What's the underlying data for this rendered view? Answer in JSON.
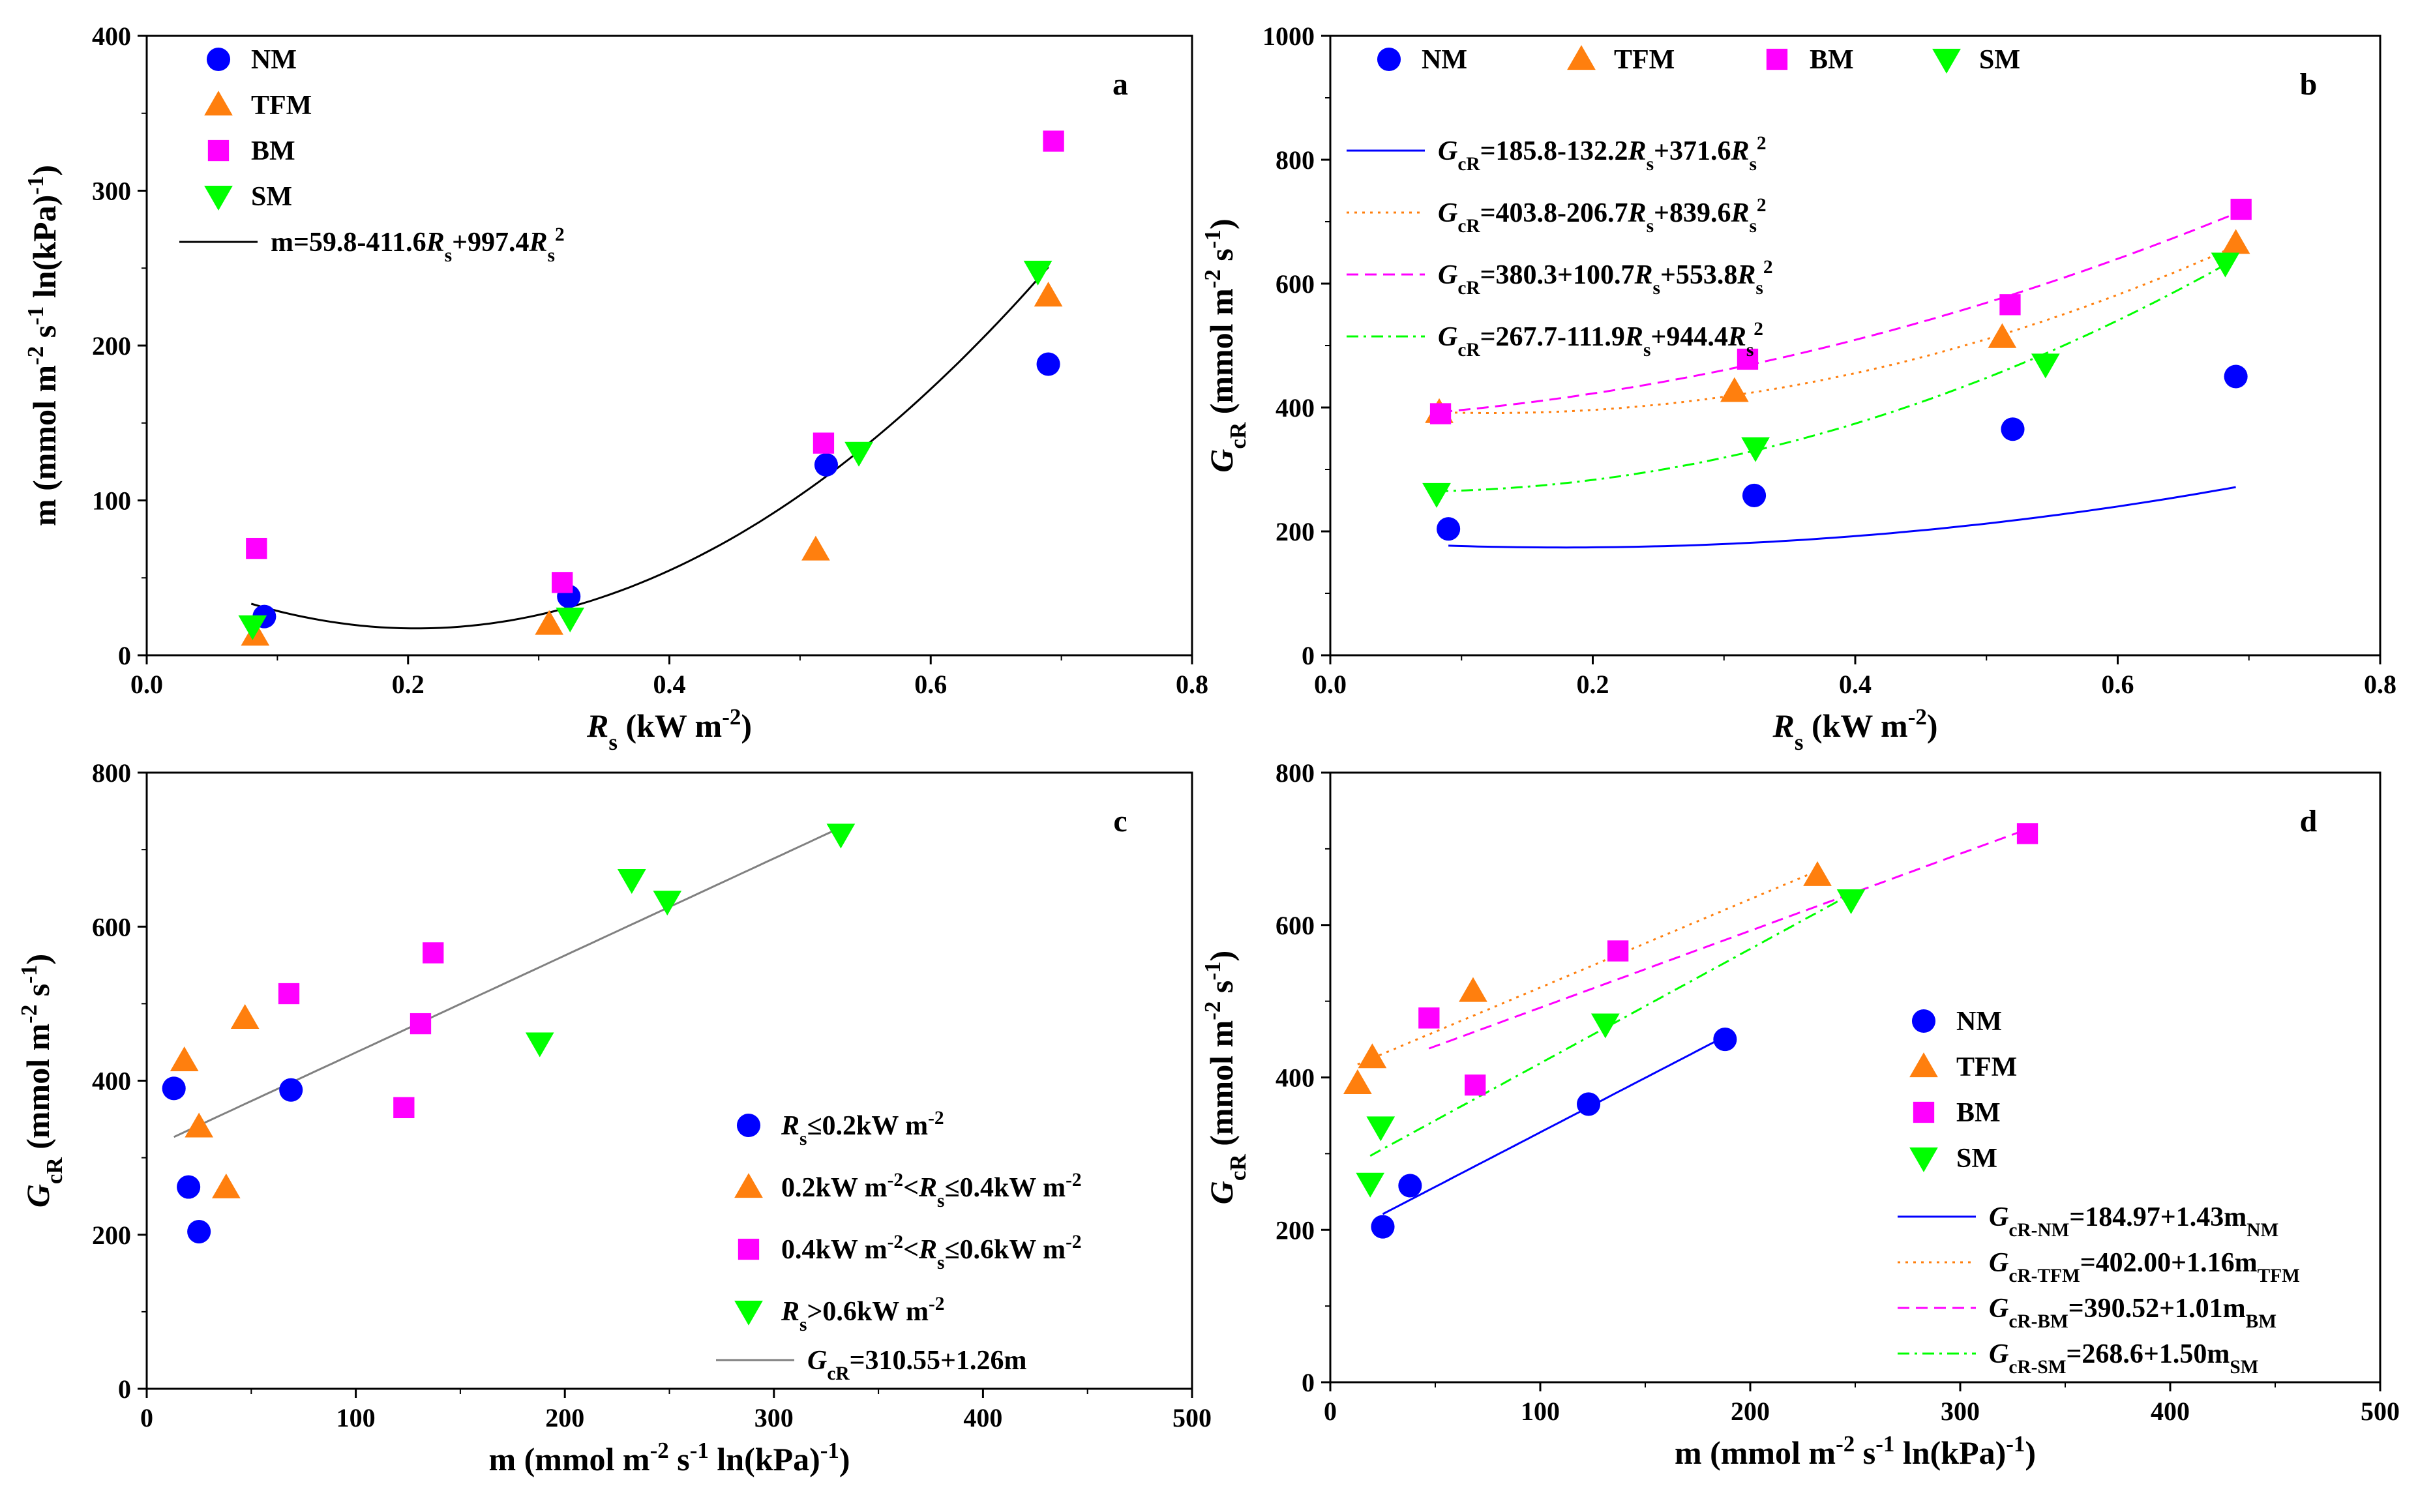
{
  "colors": {
    "NM": "#0000ff",
    "TFM": "#ff7f0e",
    "BM": "#ff00ff",
    "SM": "#00ff00",
    "fit_a": "#000000",
    "fit_c": "#808080"
  },
  "chart_data": [
    {
      "panel": "a",
      "type": "scatter",
      "label": "a",
      "xlabel": "R_s (kW m^-2)",
      "ylabel": "m (mmol m^-2 s^-1 ln(kPa)^-1)",
      "xlim": [
        0,
        0.8
      ],
      "ylim": [
        0,
        400
      ],
      "xticks": [
        "0.0",
        "0.2",
        "0.4",
        "0.6",
        "0.8"
      ],
      "yticks": [
        "0",
        "100",
        "200",
        "300",
        "400"
      ],
      "legend_position": "top-left",
      "series": [
        {
          "name": "NM",
          "marker": "circle",
          "color": "#0000ff",
          "points": [
            [
              0.09,
              25
            ],
            [
              0.323,
              38
            ],
            [
              0.52,
              123
            ],
            [
              0.69,
              188
            ]
          ]
        },
        {
          "name": "TFM",
          "marker": "triangle",
          "color": "#ff7f0e",
          "points": [
            [
              0.083,
              13
            ],
            [
              0.308,
              20
            ],
            [
              0.512,
              68
            ],
            [
              0.69,
              232
            ]
          ]
        },
        {
          "name": "BM",
          "marker": "square",
          "color": "#ff00ff",
          "points": [
            [
              0.084,
              69
            ],
            [
              0.318,
              47
            ],
            [
              0.518,
              137
            ],
            [
              0.694,
              332
            ]
          ]
        },
        {
          "name": "SM",
          "marker": "triangle-down",
          "color": "#00ff00",
          "points": [
            [
              0.081,
              19
            ],
            [
              0.324,
              24
            ],
            [
              0.545,
              131
            ],
            [
              0.682,
              248
            ]
          ]
        }
      ],
      "fits": [
        {
          "label": "m=59.8-411.6R_s+997.4R_s^2",
          "coeffs": [
            59.8,
            -411.6,
            997.4
          ],
          "range": [
            0.08,
            0.69
          ],
          "style": "solid",
          "color": "#000000"
        }
      ]
    },
    {
      "panel": "b",
      "type": "scatter",
      "label": "b",
      "xlabel": "R_s (kW m^-2)",
      "ylabel": "G_cR (mmol m^-2 s^-1)",
      "xlim": [
        0,
        0.8
      ],
      "ylim": [
        0,
        1000
      ],
      "xticks": [
        "0.0",
        "0.2",
        "0.4",
        "0.6",
        "0.8"
      ],
      "yticks": [
        "0",
        "200",
        "400",
        "600",
        "800",
        "1000"
      ],
      "legend_position": "top",
      "series": [
        {
          "name": "NM",
          "marker": "circle",
          "color": "#0000ff",
          "points": [
            [
              0.09,
              204
            ],
            [
              0.323,
              258
            ],
            [
              0.52,
              365
            ],
            [
              0.69,
              450
            ]
          ]
        },
        {
          "name": "TFM",
          "marker": "triangle",
          "color": "#ff7f0e",
          "points": [
            [
              0.083,
              392
            ],
            [
              0.308,
              426
            ],
            [
              0.512,
              513
            ],
            [
              0.69,
              665
            ]
          ]
        },
        {
          "name": "BM",
          "marker": "square",
          "color": "#ff00ff",
          "points": [
            [
              0.084,
              390
            ],
            [
              0.318,
              478
            ],
            [
              0.518,
              566
            ],
            [
              0.694,
              720
            ]
          ]
        },
        {
          "name": "SM",
          "marker": "triangle-down",
          "color": "#00ff00",
          "points": [
            [
              0.081,
              261
            ],
            [
              0.324,
              335
            ],
            [
              0.545,
              470
            ],
            [
              0.682,
              633
            ]
          ]
        }
      ],
      "fits": [
        {
          "label": "G_cR=185.8-132.2R_s+371.6R_s^2",
          "coeffs": [
            185.8,
            -132.2,
            371.6
          ],
          "range": [
            0.09,
            0.69
          ],
          "style": "solid",
          "color": "#0000ff"
        },
        {
          "label": "G_cR=403.8-206.7R_s+839.6R_s^2",
          "coeffs": [
            403.8,
            -206.7,
            839.6
          ],
          "range": [
            0.083,
            0.69
          ],
          "style": "dotted",
          "color": "#ff7f0e"
        },
        {
          "label": "G_cR=380.3+100.7R_s+553.8R_s^2",
          "coeffs": [
            380.3,
            100.7,
            553.8
          ],
          "range": [
            0.084,
            0.694
          ],
          "style": "dashed",
          "color": "#ff00ff"
        },
        {
          "label": "G_cR=267.7-111.9R_s+944.4R_s^2",
          "coeffs": [
            267.7,
            -111.9,
            944.4
          ],
          "range": [
            0.081,
            0.682
          ],
          "style": "dashdot",
          "color": "#00ff00"
        }
      ]
    },
    {
      "panel": "c",
      "type": "scatter",
      "label": "c",
      "xlabel": "m (mmol m^-2 s^-1 ln(kPa)^-1)",
      "ylabel": "G_cR (mmol m^-2 s^-1)",
      "xlim": [
        0,
        500
      ],
      "ylim": [
        0,
        800
      ],
      "xticks": [
        "0",
        "100",
        "200",
        "300",
        "400",
        "500"
      ],
      "yticks": [
        "0",
        "200",
        "400",
        "600",
        "800"
      ],
      "legend_position": "bottom-right",
      "series": [
        {
          "name": "R_s≤0.2kW m^-2",
          "marker": "circle",
          "color": "#0000ff",
          "points": [
            [
              13,
              390
            ],
            [
              20,
              262
            ],
            [
              25,
              204
            ],
            [
              69,
              388
            ]
          ]
        },
        {
          "name": "0.2kW m^-2<R_s≤0.4kW m^-2",
          "marker": "triangle",
          "color": "#ff7f0e",
          "points": [
            [
              18,
              426
            ],
            [
              25,
              340
            ],
            [
              38,
              261
            ],
            [
              47,
              481
            ]
          ]
        },
        {
          "name": "0.4kW m^-2<R_s≤0.6kW m^-2",
          "marker": "square",
          "color": "#ff00ff",
          "points": [
            [
              68,
              513
            ],
            [
              123,
              365
            ],
            [
              131,
              474
            ],
            [
              137,
              566
            ]
          ]
        },
        {
          "name": "R_s>0.6kW m^-2",
          "marker": "triangle-down",
          "color": "#00ff00",
          "points": [
            [
              188,
              449
            ],
            [
              232,
              661
            ],
            [
              249,
              633
            ],
            [
              332,
              720
            ]
          ]
        }
      ],
      "fits": [
        {
          "label": "G_cR=310.55+1.26m",
          "coeffs": [
            310.55,
            1.26
          ],
          "range": [
            13,
            332
          ],
          "style": "solid",
          "color": "#808080"
        }
      ]
    },
    {
      "panel": "d",
      "type": "scatter",
      "label": "d",
      "xlabel": "m (mmol m^-2 s^-1 ln(kPa)^-1)",
      "ylabel": "G_cR (mmol m^-2 s^-1)",
      "xlim": [
        0,
        500
      ],
      "ylim": [
        0,
        800
      ],
      "xticks": [
        "0",
        "100",
        "200",
        "300",
        "400",
        "500"
      ],
      "yticks": [
        "0",
        "200",
        "400",
        "600",
        "800"
      ],
      "legend_position": "bottom-right",
      "series": [
        {
          "name": "NM",
          "marker": "circle",
          "color": "#0000ff",
          "points": [
            [
              25,
              204
            ],
            [
              38,
              258
            ],
            [
              123,
              365
            ],
            [
              188,
              450
            ]
          ]
        },
        {
          "name": "TFM",
          "marker": "triangle",
          "color": "#ff7f0e",
          "points": [
            [
              13,
              392
            ],
            [
              20,
              426
            ],
            [
              68,
              513
            ],
            [
              232,
              665
            ]
          ]
        },
        {
          "name": "BM",
          "marker": "square",
          "color": "#ff00ff",
          "points": [
            [
              47,
              478
            ],
            [
              69,
              390
            ],
            [
              137,
              566
            ],
            [
              332,
              720
            ]
          ]
        },
        {
          "name": "SM",
          "marker": "triangle-down",
          "color": "#00ff00",
          "points": [
            [
              19,
              261
            ],
            [
              24,
              335
            ],
            [
              131,
              470
            ],
            [
              248,
              633
            ]
          ]
        }
      ],
      "fits": [
        {
          "label": "G_cR-NM=184.97+1.43m_NM",
          "coeffs": [
            184.97,
            1.43
          ],
          "range": [
            25,
            188
          ],
          "style": "solid",
          "color": "#0000ff"
        },
        {
          "label": "G_cR-TFM=402.00+1.16m_TFM",
          "coeffs": [
            402.0,
            1.16
          ],
          "range": [
            13,
            232
          ],
          "style": "dotted",
          "color": "#ff7f0e"
        },
        {
          "label": "G_cR-BM=390.52+1.01m_BM",
          "coeffs": [
            390.52,
            1.01
          ],
          "range": [
            47,
            332
          ],
          "style": "dashed",
          "color": "#ff00ff"
        },
        {
          "label": "G_cR-SM=268.6+1.50m_SM",
          "coeffs": [
            268.6,
            1.5
          ],
          "range": [
            19,
            248
          ],
          "style": "dashdot",
          "color": "#00ff00"
        }
      ]
    }
  ]
}
